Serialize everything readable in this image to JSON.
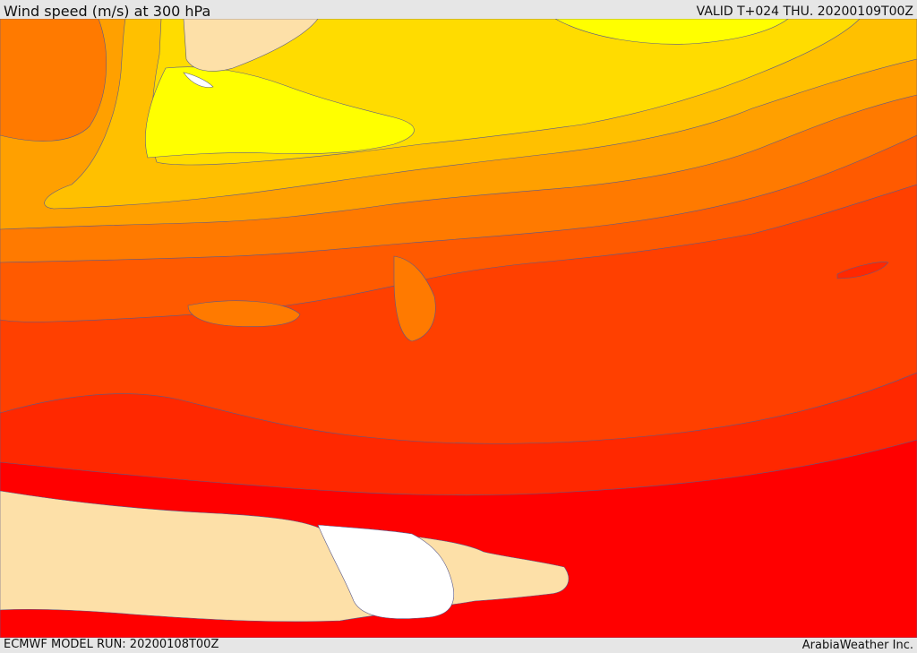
{
  "header": {
    "title": "Wind speed (m/s) at 300 hPa",
    "valid_time": "VALID T+024 THU. 20200109T00Z"
  },
  "footer": {
    "model_run": "ECMWF MODEL RUN: 20200108T00Z",
    "brand": "ArabiaWeather Inc."
  },
  "map": {
    "colors": {
      "white": "#ffffff",
      "tan": "#fde0a8",
      "yellow": "#ffff00",
      "gold": "#ffdc00",
      "light_orange": "#ffc000",
      "orange": "#ffa000",
      "dark_orange": "#ff7a00",
      "red_orange": "#ff5a00",
      "red_orange_2": "#ff4000",
      "scarlet": "#ff2800",
      "red": "#ff0000"
    }
  }
}
